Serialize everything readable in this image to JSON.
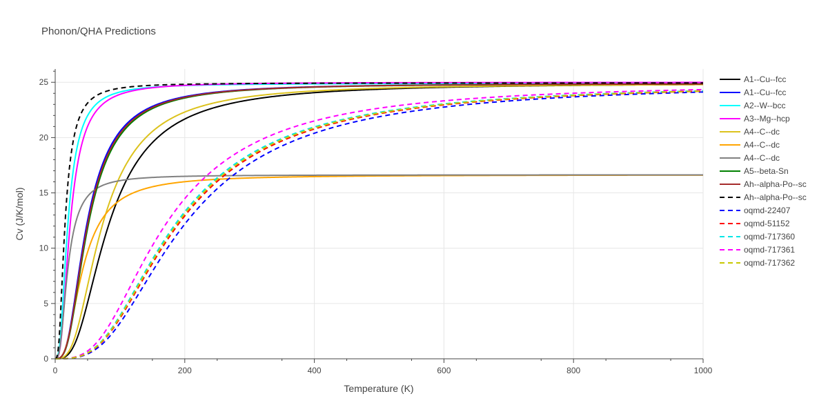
{
  "chart_data": {
    "type": "line",
    "title": "Phonon/QHA Predictions",
    "xlabel": "Temperature (K)",
    "ylabel": "Cv (J/K/mol)",
    "xlim": [
      0,
      1000
    ],
    "ylim": [
      0,
      26.2
    ],
    "x_ticks": [
      0,
      200,
      400,
      600,
      800,
      1000
    ],
    "y_ticks": [
      0,
      5,
      10,
      15,
      20,
      25
    ],
    "grid": true,
    "legend_position": "right",
    "series": [
      {
        "name": "A1--Cu--fcc",
        "color": "#000000",
        "dash": "solid",
        "theta": 340,
        "cinf": 24.94,
        "x": [
          0,
          10,
          20,
          30,
          40,
          50,
          60,
          70,
          80,
          90,
          100,
          120,
          140,
          160,
          180,
          200,
          250,
          300,
          400,
          500,
          600,
          800,
          1000
        ],
        "y": [
          0,
          0.11,
          0.88,
          2.85,
          5.6,
          8.5,
          11.1,
          13.3,
          15.1,
          16.6,
          17.8,
          19.6,
          20.9,
          21.8,
          22.4,
          22.9,
          23.7,
          24.1,
          24.5,
          24.7,
          24.78,
          24.86,
          24.9
        ]
      },
      {
        "name": "A1--Cu--fcc",
        "color": "#0000ff",
        "dash": "solid",
        "theta": 200,
        "cinf": 24.9,
        "x": [
          0,
          10,
          20,
          30,
          40,
          50,
          60,
          70,
          80,
          100,
          120,
          150,
          200,
          300,
          400,
          600,
          800,
          1000
        ],
        "y": [
          0,
          1.7,
          8.3,
          14.2,
          18.0,
          20.3,
          21.7,
          22.6,
          23.2,
          23.9,
          24.2,
          24.5,
          24.7,
          24.82,
          24.86,
          24.88,
          24.9,
          24.9
        ]
      },
      {
        "name": "A2--W--bcc",
        "color": "#00ffff",
        "dash": "solid",
        "theta": 80,
        "cinf": 24.9,
        "x": [
          0,
          5,
          10,
          15,
          20,
          25,
          30,
          40,
          50,
          60,
          80,
          100,
          150,
          200,
          300,
          500,
          1000
        ],
        "y": [
          0,
          2.4,
          9.2,
          14.7,
          18.0,
          20.0,
          21.3,
          22.8,
          23.6,
          24.0,
          24.4,
          24.6,
          24.8,
          24.85,
          24.88,
          24.9,
          24.9
        ]
      },
      {
        "name": "A3--Mg--hcp",
        "color": "#ff00ff",
        "dash": "solid",
        "theta": 95,
        "cinf": 25.0,
        "x": [
          0,
          5,
          10,
          15,
          20,
          25,
          30,
          40,
          50,
          60,
          80,
          100,
          150,
          200,
          300,
          500,
          1000
        ],
        "y": [
          0,
          1.3,
          6.5,
          12.2,
          16.1,
          18.7,
          20.3,
          22.2,
          23.1,
          23.7,
          24.3,
          24.55,
          24.8,
          24.9,
          24.95,
          25.0,
          25.0
        ]
      },
      {
        "name": "A4--C--dc",
        "color": "#dcc21c",
        "dash": "solid",
        "theta": 300,
        "cinf": 24.9,
        "x": [
          0,
          10,
          20,
          30,
          40,
          50,
          60,
          70,
          80,
          90,
          100,
          120,
          140,
          160,
          180,
          200,
          250,
          300,
          400,
          500,
          600,
          800,
          1000
        ],
        "y": [
          0,
          0.07,
          0.6,
          2.2,
          4.6,
          7.5,
          10.2,
          12.4,
          14.2,
          15.9,
          17.2,
          19.1,
          20.5,
          21.4,
          22.1,
          22.6,
          23.4,
          23.9,
          24.4,
          24.6,
          24.72,
          24.82,
          24.88
        ]
      },
      {
        "name": "A4--C--dc",
        "color": "#ffa500",
        "dash": "solid",
        "theta": 175,
        "cinf": 16.63,
        "x": [
          0,
          10,
          20,
          30,
          40,
          50,
          60,
          70,
          80,
          90,
          100,
          120,
          140,
          160,
          180,
          200,
          250,
          300,
          400,
          500,
          600,
          800,
          1000
        ],
        "y": [
          0,
          0.25,
          2.0,
          5.0,
          7.9,
          10.0,
          11.6,
          12.8,
          13.6,
          14.2,
          14.7,
          15.3,
          15.65,
          15.9,
          16.05,
          16.15,
          16.3,
          16.4,
          16.5,
          16.55,
          16.58,
          16.61,
          16.63
        ]
      },
      {
        "name": "A4--C--dc",
        "color": "#808080",
        "dash": "solid",
        "theta": 80,
        "cinf": 16.63,
        "x": [
          0,
          5,
          10,
          15,
          20,
          25,
          30,
          40,
          50,
          60,
          80,
          100,
          150,
          200,
          300,
          500,
          1000
        ],
        "y": [
          0,
          1.6,
          6.1,
          9.8,
          12.1,
          13.5,
          14.4,
          15.3,
          15.8,
          16.1,
          16.35,
          16.45,
          16.55,
          16.58,
          16.6,
          16.62,
          16.63
        ]
      },
      {
        "name": "A5--beta-Sn",
        "color": "#008000",
        "dash": "solid",
        "theta": 210,
        "cinf": 24.9,
        "x": [
          0,
          10,
          20,
          30,
          40,
          50,
          60,
          70,
          80,
          100,
          120,
          150,
          200,
          300,
          400,
          600,
          800,
          1000
        ],
        "y": [
          0,
          1.4,
          7.6,
          13.5,
          17.4,
          19.8,
          21.3,
          22.2,
          22.9,
          23.7,
          24.1,
          24.4,
          24.65,
          24.8,
          24.85,
          24.88,
          24.9,
          24.9
        ]
      },
      {
        "name": "Ah--alpha-Po--sc",
        "color": "#a52a2a",
        "dash": "solid",
        "theta": 205,
        "cinf": 24.9,
        "x": [
          0,
          10,
          20,
          30,
          40,
          50,
          60,
          70,
          80,
          100,
          120,
          150,
          200,
          300,
          400,
          600,
          800,
          1000
        ],
        "y": [
          0,
          1.5,
          8.0,
          13.8,
          17.6,
          20.0,
          21.4,
          22.3,
          23.0,
          23.8,
          24.15,
          24.45,
          24.65,
          24.8,
          24.85,
          24.88,
          24.9,
          24.9
        ]
      },
      {
        "name": "Ah--alpha-Po--sc",
        "color": "#000000",
        "dash": "dash",
        "theta": 62,
        "cinf": 24.94,
        "x": [
          0,
          5,
          10,
          15,
          20,
          25,
          30,
          40,
          50,
          60,
          80,
          100,
          150,
          200,
          300,
          500,
          1000
        ],
        "y": [
          0,
          4.5,
          13.0,
          17.7,
          20.2,
          21.7,
          22.6,
          23.6,
          24.1,
          24.35,
          24.6,
          24.75,
          24.85,
          24.9,
          24.92,
          24.94,
          24.94
        ]
      },
      {
        "name": "oqmd-22407",
        "color": "#0000ff",
        "dash": "dash",
        "theta": 820,
        "cinf": 24.94,
        "x": [
          0,
          20,
          40,
          60,
          80,
          100,
          120,
          140,
          160,
          180,
          200,
          250,
          300,
          350,
          400,
          500,
          600,
          800,
          1000
        ],
        "y": [
          0,
          0.1,
          0.8,
          2.4,
          4.2,
          6.0,
          7.8,
          9.5,
          11.1,
          12.5,
          13.8,
          16.5,
          18.5,
          20.1,
          21.3,
          22.7,
          23.4,
          24.0,
          24.3
        ]
      },
      {
        "name": "oqmd-51152",
        "color": "#ff0000",
        "dash": "dash",
        "theta": 780,
        "cinf": 24.94,
        "x": [
          0,
          20,
          40,
          60,
          80,
          100,
          120,
          140,
          160,
          180,
          200,
          250,
          300,
          350,
          400,
          500,
          600,
          800,
          1000
        ],
        "y": [
          0,
          0.05,
          0.5,
          2.0,
          4.2,
          6.4,
          8.5,
          10.4,
          12.1,
          13.6,
          14.9,
          17.5,
          19.3,
          20.6,
          21.6,
          22.9,
          23.6,
          24.2,
          24.5
        ]
      },
      {
        "name": "oqmd-717360",
        "color": "#00e5e5",
        "dash": "dash",
        "theta": 760,
        "cinf": 24.94,
        "x": [
          0,
          20,
          40,
          60,
          80,
          100,
          120,
          140,
          160,
          180,
          200,
          250,
          300,
          350,
          400,
          500,
          600,
          800,
          1000
        ],
        "y": [
          0,
          0.2,
          1.2,
          3.0,
          5.1,
          7.2,
          9.1,
          10.9,
          12.5,
          14.0,
          15.3,
          17.8,
          19.5,
          20.8,
          21.8,
          23.0,
          23.6,
          24.2,
          24.5
        ]
      },
      {
        "name": "oqmd-717361",
        "color": "#ff00ff",
        "dash": "dash",
        "theta": 700,
        "cinf": 24.94,
        "x": [
          0,
          20,
          40,
          60,
          80,
          100,
          120,
          140,
          160,
          180,
          200,
          250,
          300,
          350,
          400,
          500,
          600,
          800,
          1000
        ],
        "y": [
          0,
          0.25,
          1.6,
          3.8,
          6.2,
          8.5,
          10.6,
          12.4,
          14.0,
          15.4,
          16.6,
          18.9,
          20.4,
          21.5,
          22.3,
          23.3,
          23.8,
          24.3,
          24.55
        ]
      },
      {
        "name": "oqmd-717362",
        "color": "#c8c800",
        "dash": "dash",
        "theta": 770,
        "cinf": 24.94,
        "x": [
          0,
          20,
          40,
          60,
          80,
          100,
          120,
          140,
          160,
          180,
          200,
          250,
          300,
          350,
          400,
          500,
          600,
          800,
          1000
        ],
        "y": [
          0,
          0.15,
          1.1,
          2.8,
          4.9,
          7.0,
          9.0,
          10.8,
          12.4,
          13.9,
          15.2,
          17.7,
          19.4,
          20.7,
          21.7,
          22.9,
          23.6,
          24.2,
          24.45
        ]
      }
    ]
  }
}
